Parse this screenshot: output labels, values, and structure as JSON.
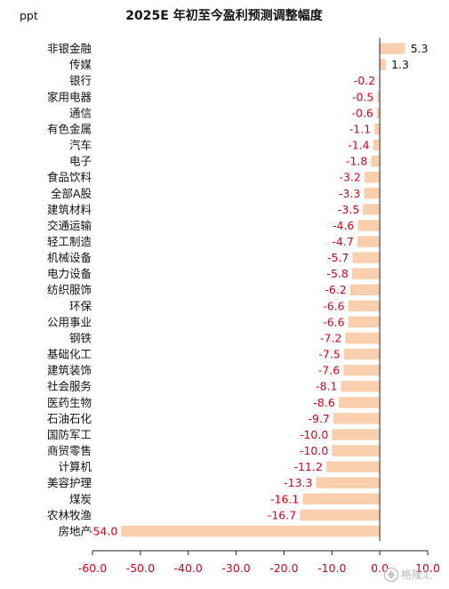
{
  "chart_data": {
    "type": "bar",
    "orientation": "horizontal",
    "title": "2025E 年初至今盈利预测调整幅度",
    "unit_label": "ppt",
    "categories": [
      "非银金融",
      "传媒",
      "银行",
      "家用电器",
      "通信",
      "有色金属",
      "汽车",
      "电子",
      "食品饮料",
      "全部A股",
      "建筑材料",
      "交通运输",
      "轻工制造",
      "机械设备",
      "电力设备",
      "纺织服饰",
      "环保",
      "公用事业",
      "钢铁",
      "基础化工",
      "建筑装饰",
      "社会服务",
      "医药生物",
      "石油石化",
      "国防军工",
      "商贸零售",
      "计算机",
      "美容护理",
      "煤炭",
      "农林牧渔",
      "房地产"
    ],
    "values": [
      5.3,
      1.3,
      -0.2,
      -0.5,
      -0.6,
      -1.1,
      -1.4,
      -1.8,
      -3.2,
      -3.3,
      -3.5,
      -4.6,
      -4.7,
      -5.7,
      -5.8,
      -6.2,
      -6.6,
      -6.6,
      -7.2,
      -7.5,
      -7.6,
      -8.1,
      -8.6,
      -9.7,
      -10.0,
      -10.0,
      -11.2,
      -13.3,
      -16.1,
      -16.7,
      -54.0
    ],
    "value_labels": [
      "5.3",
      "1.3",
      "-0.2",
      "-0.5",
      "-0.6",
      "-1.1",
      "-1.4",
      "-1.8",
      "-3.2",
      "-3.3",
      "-3.5",
      "-4.6",
      "-4.7",
      "-5.7",
      "-5.8",
      "-6.2",
      "-6.6",
      "-6.6",
      "-7.2",
      "-7.5",
      "-7.6",
      "-8.1",
      "-8.6",
      "-9.7",
      "-10.0",
      "-10.0",
      "-11.2",
      "-13.3",
      "-16.1",
      "-16.7",
      "-54.0"
    ],
    "x_ticks": [
      "-60.0",
      "-50.0",
      "-40.0",
      "-30.0",
      "-20.0",
      "-10.0",
      "0.0",
      "10.0"
    ],
    "x_tick_values": [
      -60,
      -50,
      -40,
      -30,
      -20,
      -10,
      0,
      10
    ],
    "xlim": [
      -60,
      10
    ],
    "grid": false,
    "legend": "none"
  },
  "watermark": {
    "text": "格隆汇"
  },
  "colors": {
    "bar": "#f9cfae",
    "positive_label": "#111111",
    "negative_label": "#d0021b",
    "axis": "#222222",
    "tick_label": "#d0021b"
  }
}
